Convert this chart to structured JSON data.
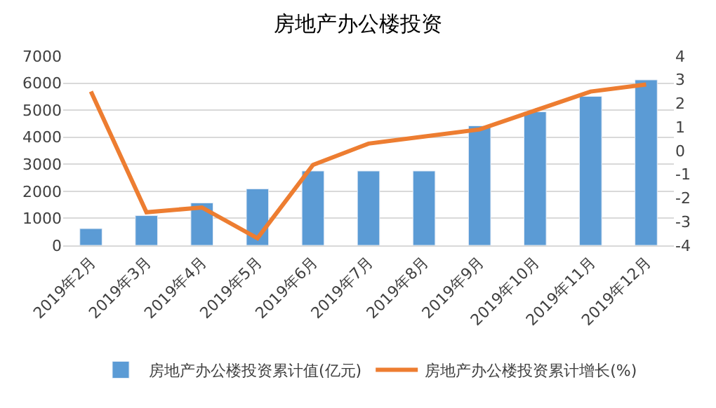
{
  "chart_data": {
    "type": "bar",
    "title": "房地产办公楼投资",
    "categories": [
      "2019年2月",
      "2019年3月",
      "2019年4月",
      "2019年5月",
      "2019年6月",
      "2019年7月",
      "2019年8月",
      "2019年9月",
      "2019年10月",
      "2019年11月",
      "2019年12月"
    ],
    "series": [
      {
        "name": "房地产办公楼投资累计值(亿元)",
        "color": "#5b9bd5",
        "values": [
          620,
          1100,
          1570,
          2090,
          2750,
          2750,
          2750,
          4420,
          4940,
          5510,
          6120
        ]
      },
      {
        "name": "房地产办公楼投资累计增长(%)",
        "type": "line",
        "axis": "y2",
        "color": "#ed7d31",
        "values": [
          2.5,
          -2.6,
          -2.4,
          -3.7,
          -0.6,
          0.3,
          0.6,
          0.9,
          1.7,
          2.5,
          2.8
        ]
      }
    ],
    "ylim": [
      0,
      7000
    ],
    "yticks": [
      0,
      1000,
      2000,
      3000,
      4000,
      5000,
      6000,
      7000
    ],
    "y2lim": [
      -4,
      4
    ],
    "y2ticks": [
      -4,
      -3,
      -2,
      -1,
      0,
      1,
      2,
      3,
      4
    ],
    "grid": "y",
    "legend": "bottom",
    "marker": "none",
    "line_style": "solid"
  }
}
